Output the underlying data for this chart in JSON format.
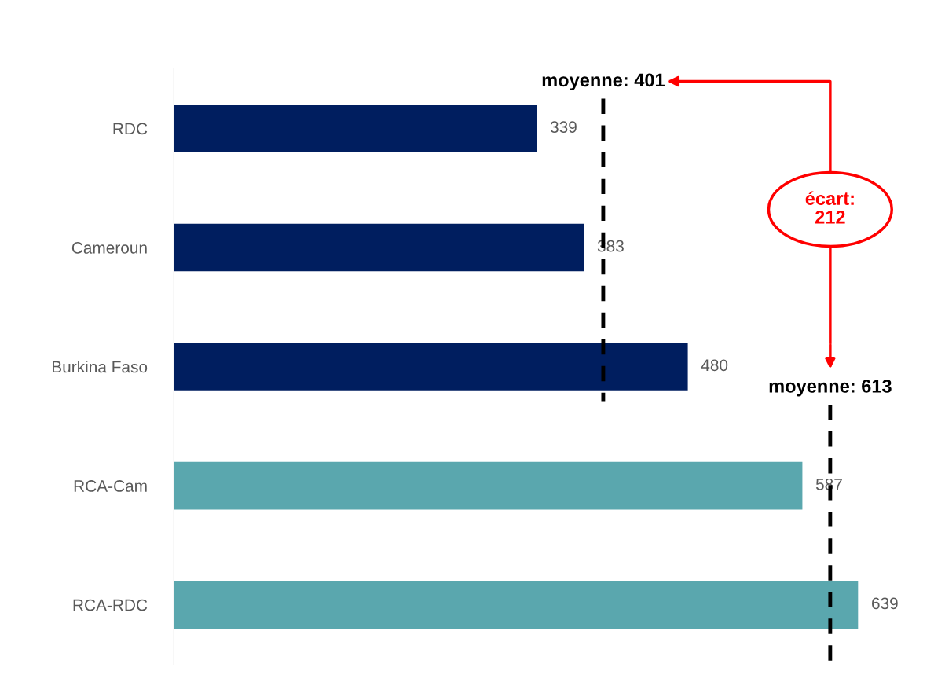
{
  "chart_data": {
    "type": "bar",
    "orientation": "horizontal",
    "categories": [
      "RDC",
      "Cameroun",
      "Burkina Faso",
      "RCA-Cam",
      "RCA-RDC"
    ],
    "values": [
      339,
      383,
      480,
      587,
      639
    ],
    "colors": [
      "#001e5f",
      "#001e5f",
      "#001e5f",
      "#5aa7ae",
      "#5aa7ae"
    ],
    "data_labels": true,
    "ref_lines": [
      {
        "axis": "x",
        "value": 401,
        "label": "moyenne: 401",
        "color": "#000000",
        "line_style": "dashed"
      },
      {
        "axis": "x",
        "value": 613,
        "label": "moyenne: 613",
        "color": "#000000",
        "line_style": "dashed"
      }
    ],
    "annotations": [
      "écart:\n212"
    ],
    "grid": false
  }
}
